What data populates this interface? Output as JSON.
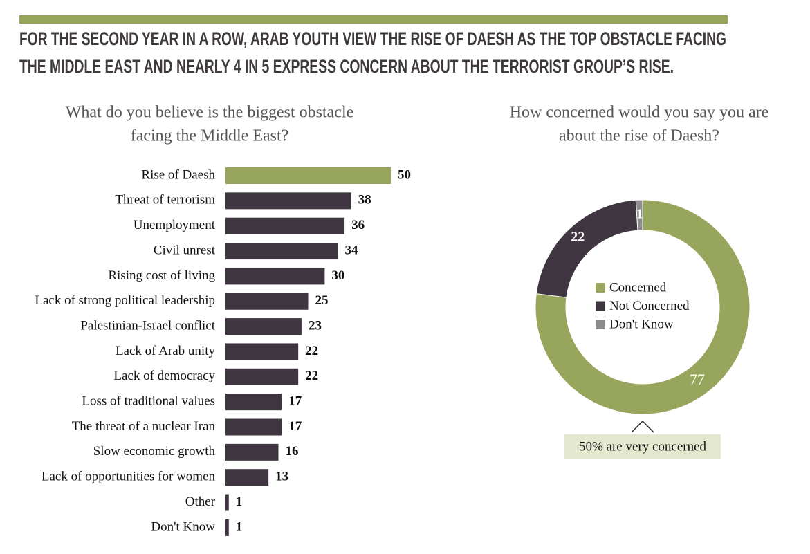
{
  "header": {
    "title_lines": [
      "FOR THE SECOND YEAR IN A ROW, ARAB YOUTH VIEW THE RISE OF DAESH AS THE TOP OBSTACLE FACING",
      "THE MIDDLE EAST AND NEARLY 4 IN 5 EXPRESS CONCERN ABOUT THE TERRORIST GROUP’S RISE."
    ]
  },
  "chart_data": [
    {
      "type": "hbar",
      "title_lines": [
        "What do you believe is the biggest obstacle",
        "facing the Middle East?"
      ],
      "categories": [
        "Rise of Daesh",
        "Threat of terrorism",
        "Unemployment",
        "Civil unrest",
        "Rising cost of living",
        "Lack of strong political leadership",
        "Palestinian-Israel conflict",
        "Lack of Arab unity",
        "Lack of democracy",
        "Loss of traditional values",
        "The threat of a nuclear Iran",
        "Slow economic growth",
        "Lack of opportunities for women",
        "Other",
        "Don't Know"
      ],
      "values": [
        50,
        38,
        36,
        34,
        30,
        25,
        23,
        22,
        22,
        17,
        17,
        16,
        13,
        1,
        1
      ],
      "colors": [
        "#97a65c",
        "#403641",
        "#403641",
        "#403641",
        "#403641",
        "#403641",
        "#403641",
        "#403641",
        "#403641",
        "#403641",
        "#403641",
        "#403641",
        "#403641",
        "#403641",
        "#403641"
      ]
    },
    {
      "type": "donut",
      "title_lines": [
        "How concerned would you say you are",
        "about the rise of Daesh?"
      ],
      "categories": [
        "Concerned",
        "Not Concerned",
        "Don't Know"
      ],
      "values": [
        77,
        22,
        1
      ],
      "colors": [
        "#97a65c",
        "#403641",
        "#8e8b8f"
      ],
      "annotation": "50% are very concerned"
    }
  ]
}
